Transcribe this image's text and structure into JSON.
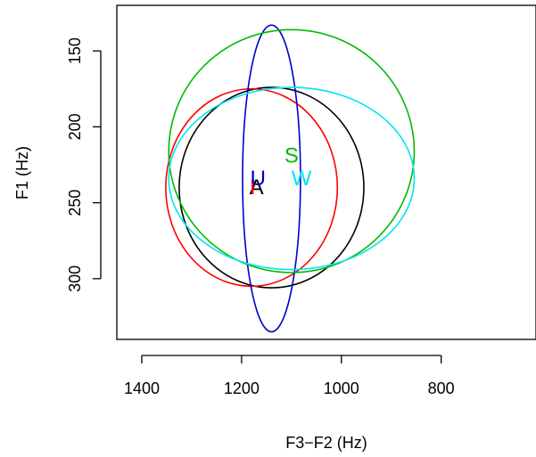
{
  "chart_data": {
    "type": "scatter",
    "xlabel": "F3−F2 (Hz)",
    "ylabel": "F1 (Hz)",
    "xlim": [
      1450,
      610
    ],
    "ylim": [
      340,
      120
    ],
    "x_ticks": [
      1400,
      1200,
      1000,
      800
    ],
    "y_ticks": [
      150,
      200,
      250,
      300
    ],
    "series": [
      {
        "name": "A",
        "color": "#000000",
        "center": [
          1170,
          240
        ],
        "ellipse": {
          "cx": 1140,
          "cy": 240,
          "rx": 185,
          "ry": 66
        }
      },
      {
        "name": "I",
        "color": "#ff0000",
        "center": [
          1178,
          240
        ],
        "ellipse": {
          "cx": 1180,
          "cy": 240,
          "rx": 172,
          "ry": 65
        }
      },
      {
        "name": "U",
        "color": "#0000cd",
        "center": [
          1167,
          234
        ],
        "ellipse": {
          "cx": 1140,
          "cy": 234,
          "rx": 58,
          "ry": 101
        }
      },
      {
        "name": "S",
        "color": "#00bb00",
        "center": [
          1100,
          219
        ],
        "ellipse": {
          "cx": 1100,
          "cy": 216,
          "rx": 246,
          "ry": 80
        }
      },
      {
        "name": "W",
        "color": "#00e5ee",
        "center": [
          1080,
          234
        ],
        "ellipse": {
          "cx": 1100,
          "cy": 234,
          "rx": 246,
          "ry": 60
        }
      }
    ]
  }
}
